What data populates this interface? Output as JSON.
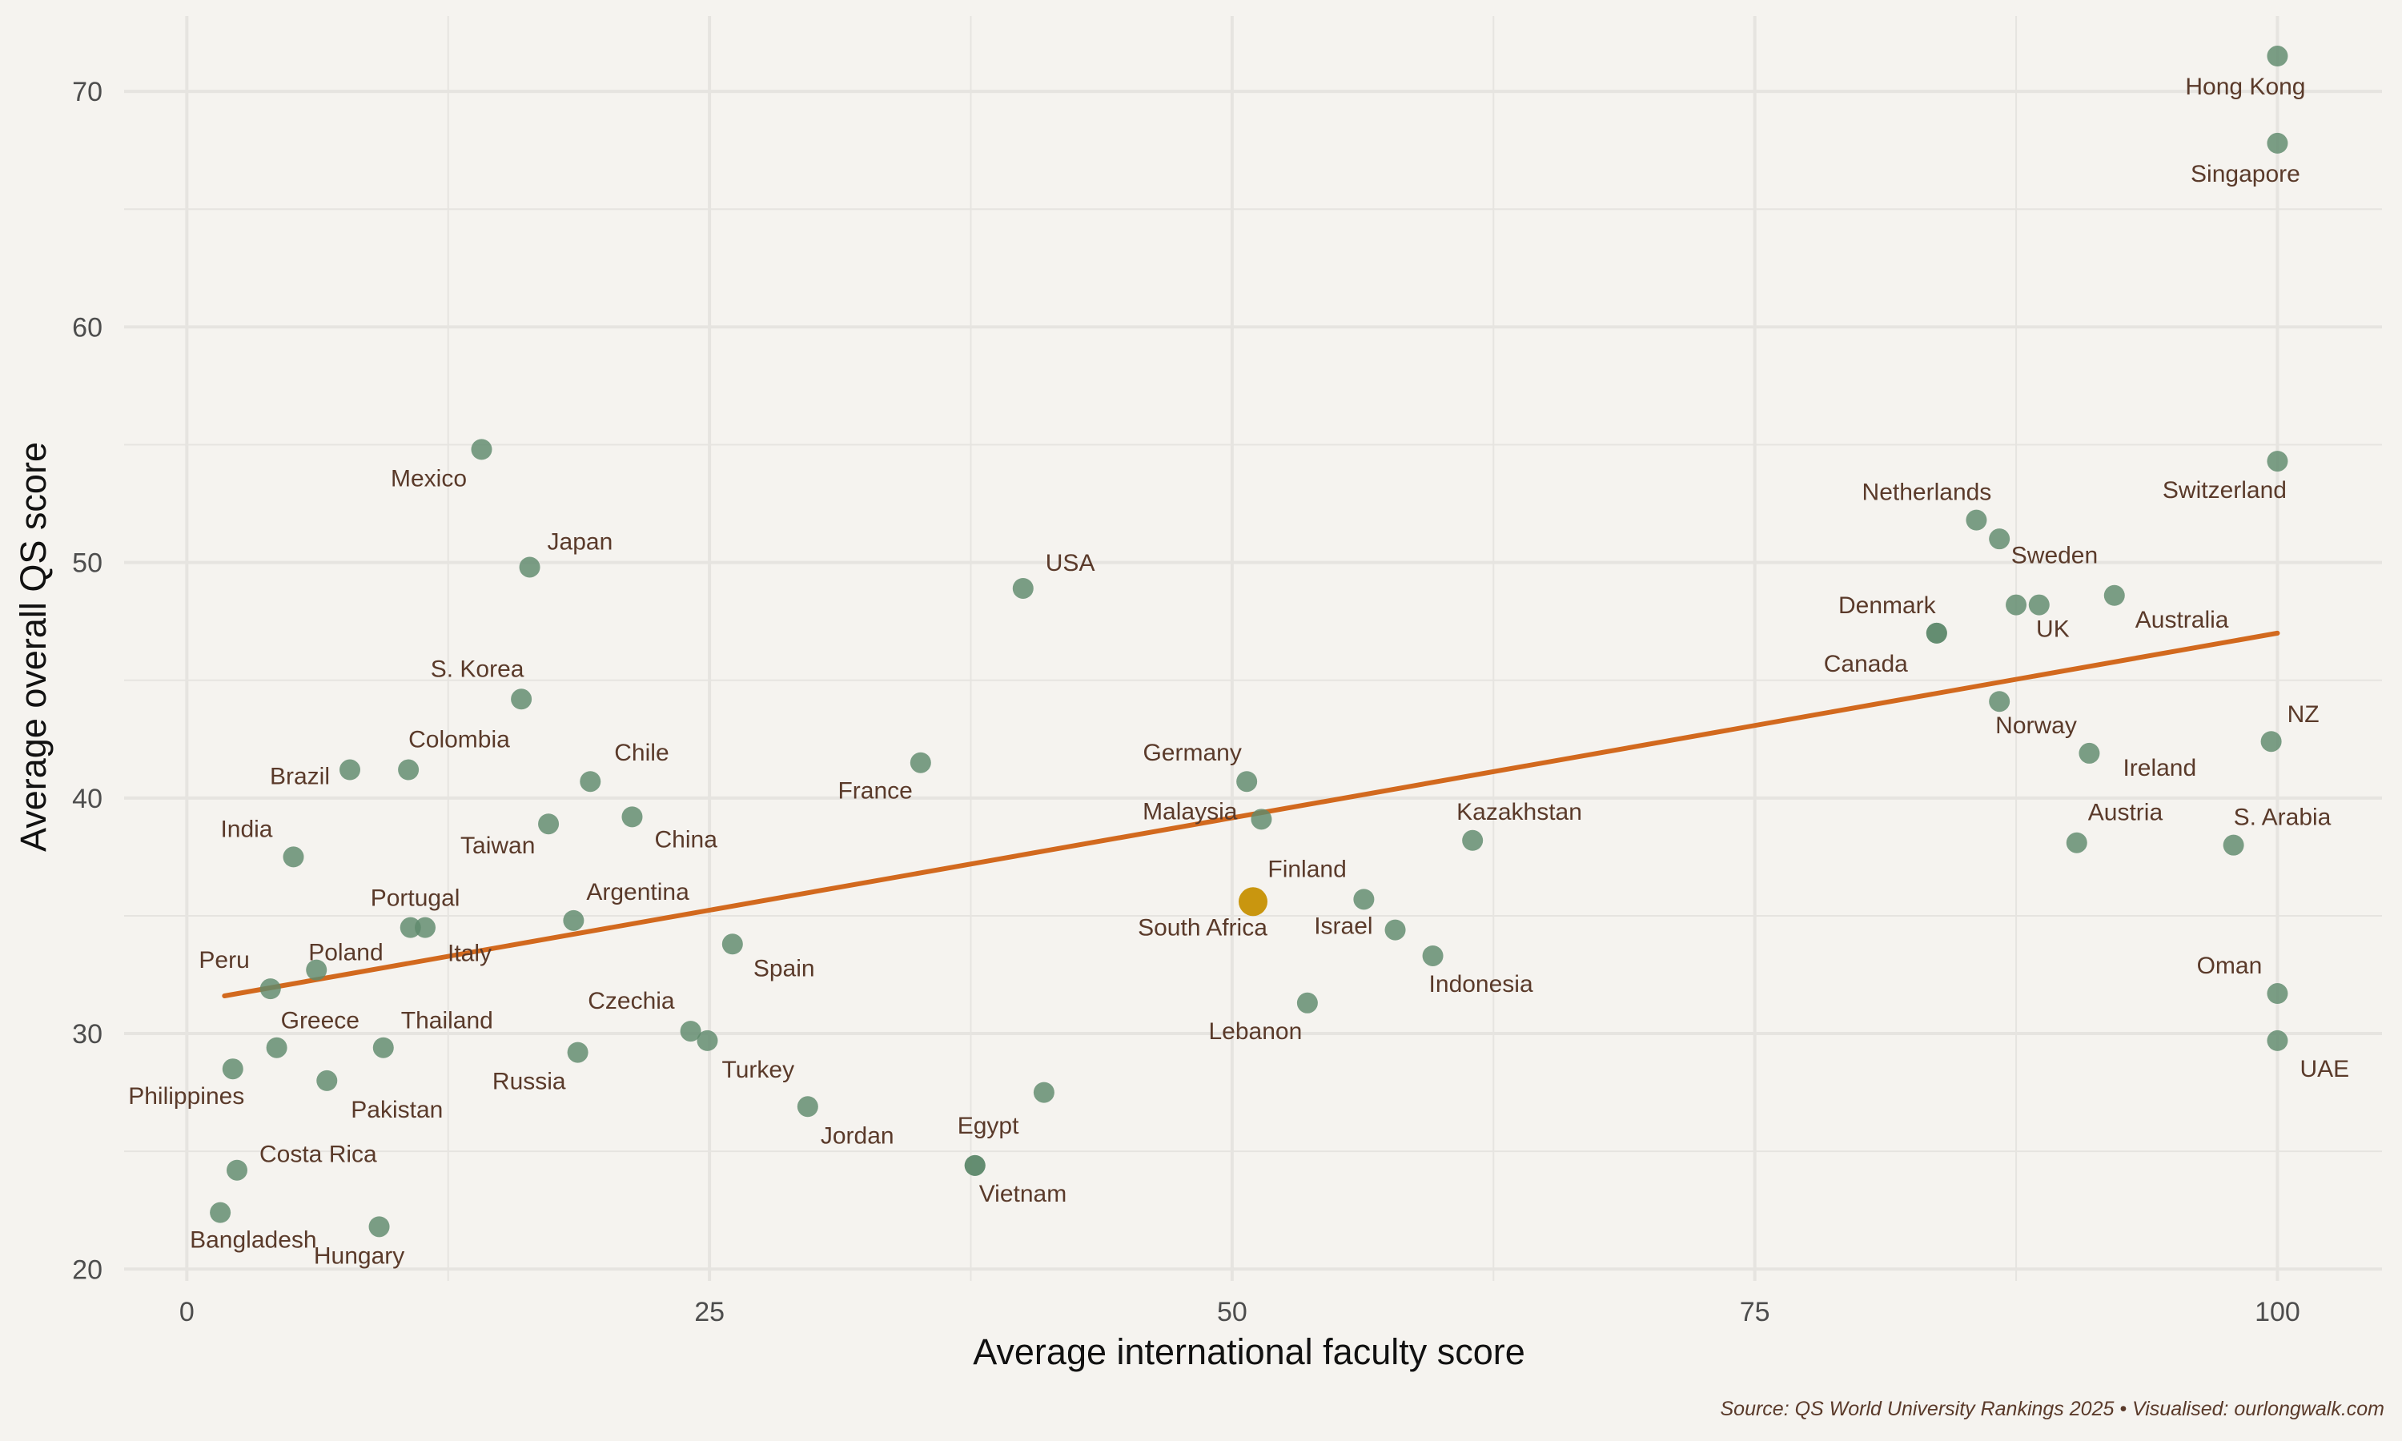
{
  "chart_data": {
    "type": "scatter",
    "title": "",
    "xlabel": "Average international faculty score",
    "ylabel": "Average overall QS score",
    "xlim": [
      -3,
      105
    ],
    "ylim": [
      19.5,
      73.2
    ],
    "xticks": [
      0,
      25,
      50,
      75,
      100
    ],
    "yticks": [
      20,
      30,
      40,
      50,
      60,
      70
    ],
    "grid": true,
    "caption": "Source: QS World University Rankings 2025 • Visualised: ourlongwalk.com",
    "colors": {
      "point": "#5f8a6c",
      "highlight": "#c9960f",
      "trend": "#d2691e",
      "label": "#5a3a2a",
      "grid": "#e6e4e0",
      "background": "#f5f3ef"
    },
    "trend_line": {
      "x": [
        1.8,
        100
      ],
      "y": [
        31.6,
        47.0
      ]
    },
    "points": [
      {
        "label": "Hong Kong",
        "x": 100,
        "y": 71.5
      },
      {
        "label": "Singapore",
        "x": 100,
        "y": 67.8
      },
      {
        "label": "Mexico",
        "x": 14.1,
        "y": 54.8
      },
      {
        "label": "Switzerland",
        "x": 100,
        "y": 54.3
      },
      {
        "label": "Netherlands",
        "x": 85.6,
        "y": 51.8
      },
      {
        "label": "",
        "x": 86.7,
        "y": 51.0
      },
      {
        "label": "Japan",
        "x": 16.4,
        "y": 49.8
      },
      {
        "label": "USA",
        "x": 40.0,
        "y": 48.9
      },
      {
        "label": "Australia",
        "x": 92.2,
        "y": 48.6
      },
      {
        "label": "Sweden",
        "x": 88.6,
        "y": 48.2
      },
      {
        "label": "UK",
        "x": 87.5,
        "y": 48.2
      },
      {
        "label": "Denmark",
        "x": 83.7,
        "y": 47.0
      },
      {
        "label": "Canada",
        "x": 83.7,
        "y": 47.0
      },
      {
        "label": "S. Korea",
        "x": 16.0,
        "y": 44.2
      },
      {
        "label": "Norway",
        "x": 86.7,
        "y": 44.1
      },
      {
        "label": "NZ",
        "x": 99.7,
        "y": 42.4
      },
      {
        "label": "Ireland",
        "x": 91.0,
        "y": 41.9
      },
      {
        "label": "France",
        "x": 35.1,
        "y": 41.5
      },
      {
        "label": "Brazil",
        "x": 7.8,
        "y": 41.2
      },
      {
        "label": "Colombia",
        "x": 10.6,
        "y": 41.2
      },
      {
        "label": "Chile",
        "x": 19.3,
        "y": 40.7
      },
      {
        "label": "Germany",
        "x": 50.7,
        "y": 40.7
      },
      {
        "label": "China",
        "x": 21.3,
        "y": 39.2
      },
      {
        "label": "Malaysia",
        "x": 51.4,
        "y": 39.1
      },
      {
        "label": "Taiwan",
        "x": 17.3,
        "y": 38.9
      },
      {
        "label": "Kazakhstan",
        "x": 61.5,
        "y": 38.2
      },
      {
        "label": "Austria",
        "x": 90.4,
        "y": 38.1
      },
      {
        "label": "S. Arabia",
        "x": 97.9,
        "y": 38.0
      },
      {
        "label": "India",
        "x": 5.1,
        "y": 37.5
      },
      {
        "label": "Finland",
        "x": 56.3,
        "y": 35.7
      },
      {
        "label": "South Africa",
        "x": 51.0,
        "y": 35.6,
        "highlight": true
      },
      {
        "label": "Argentina",
        "x": 18.5,
        "y": 34.8
      },
      {
        "label": "Portugal",
        "x": 10.7,
        "y": 34.5
      },
      {
        "label": "Italy",
        "x": 11.4,
        "y": 34.5
      },
      {
        "label": "Israel",
        "x": 57.8,
        "y": 34.4
      },
      {
        "label": "Spain",
        "x": 26.1,
        "y": 33.8
      },
      {
        "label": "Indonesia",
        "x": 59.6,
        "y": 33.3
      },
      {
        "label": "Poland",
        "x": 6.2,
        "y": 32.7
      },
      {
        "label": "Peru",
        "x": 4.0,
        "y": 31.9
      },
      {
        "label": "Oman",
        "x": 100,
        "y": 31.7
      },
      {
        "label": "Lebanon",
        "x": 53.6,
        "y": 31.3
      },
      {
        "label": "Czechia",
        "x": 24.1,
        "y": 30.1
      },
      {
        "label": "Turkey",
        "x": 24.9,
        "y": 29.7
      },
      {
        "label": "UAE",
        "x": 100,
        "y": 29.7
      },
      {
        "label": "Thailand",
        "x": 9.4,
        "y": 29.4
      },
      {
        "label": "Greece",
        "x": 4.3,
        "y": 29.4
      },
      {
        "label": "Russia",
        "x": 18.7,
        "y": 29.2
      },
      {
        "label": "Philippines",
        "x": 2.2,
        "y": 28.5
      },
      {
        "label": "Pakistan",
        "x": 6.7,
        "y": 28.0
      },
      {
        "label": "",
        "x": 41.0,
        "y": 27.5
      },
      {
        "label": "Jordan",
        "x": 29.7,
        "y": 26.9
      },
      {
        "label": "Egypt",
        "x": 37.7,
        "y": 24.4
      },
      {
        "label": "Vietnam",
        "x": 37.7,
        "y": 24.4
      },
      {
        "label": "Costa Rica",
        "x": 2.4,
        "y": 24.2
      },
      {
        "label": "Bangladesh",
        "x": 1.6,
        "y": 22.4
      },
      {
        "label": "Hungary",
        "x": 9.2,
        "y": 21.8
      }
    ]
  }
}
